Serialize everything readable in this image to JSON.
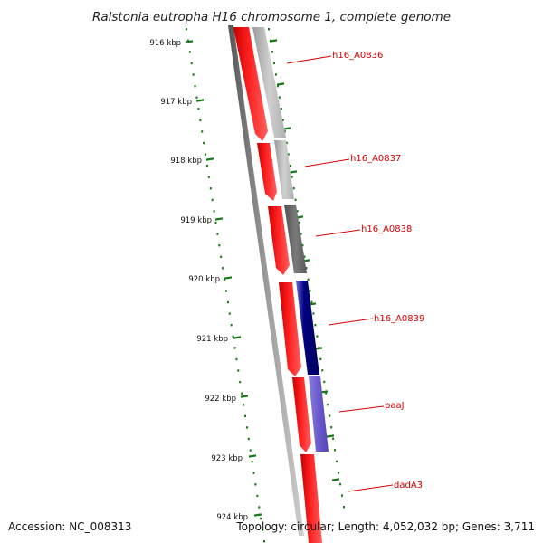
{
  "title": "Ralstonia eutropha H16 chromosome 1, complete genome",
  "accession_text": "Accession: NC_008313",
  "summary_text": "Topology: circular; Length: 4,052,032 bp; Genes: 3,711",
  "colors": {
    "cds": "#ff0000",
    "backbone": "#777777",
    "tick": "#1a7a1a",
    "label": "#d40000",
    "feature_grey": "#b8b8b8",
    "feature_dark": "#666666",
    "feature_navy": "#000080",
    "feature_purple": "#6a5acd"
  },
  "scale": {
    "ticks": [
      {
        "kbp": 916,
        "label": "916 kbp"
      },
      {
        "kbp": 917,
        "label": "917 kbp"
      },
      {
        "kbp": 918,
        "label": "918 kbp"
      },
      {
        "kbp": 919,
        "label": "919 kbp"
      },
      {
        "kbp": 920,
        "label": "920 kbp"
      },
      {
        "kbp": 921,
        "label": "921 kbp"
      },
      {
        "kbp": 922,
        "label": "922 kbp"
      },
      {
        "kbp": 923,
        "label": "923 kbp"
      },
      {
        "kbp": 924,
        "label": "924 kbp"
      }
    ]
  },
  "genes": [
    {
      "name": "h16_A0836",
      "strand": "reverse"
    },
    {
      "name": "h16_A0837",
      "strand": "reverse"
    },
    {
      "name": "h16_A0838",
      "strand": "reverse"
    },
    {
      "name": "h16_A0839",
      "strand": "reverse"
    },
    {
      "name": "paaJ",
      "strand": "reverse"
    },
    {
      "name": "dadA3",
      "strand": "reverse"
    }
  ]
}
